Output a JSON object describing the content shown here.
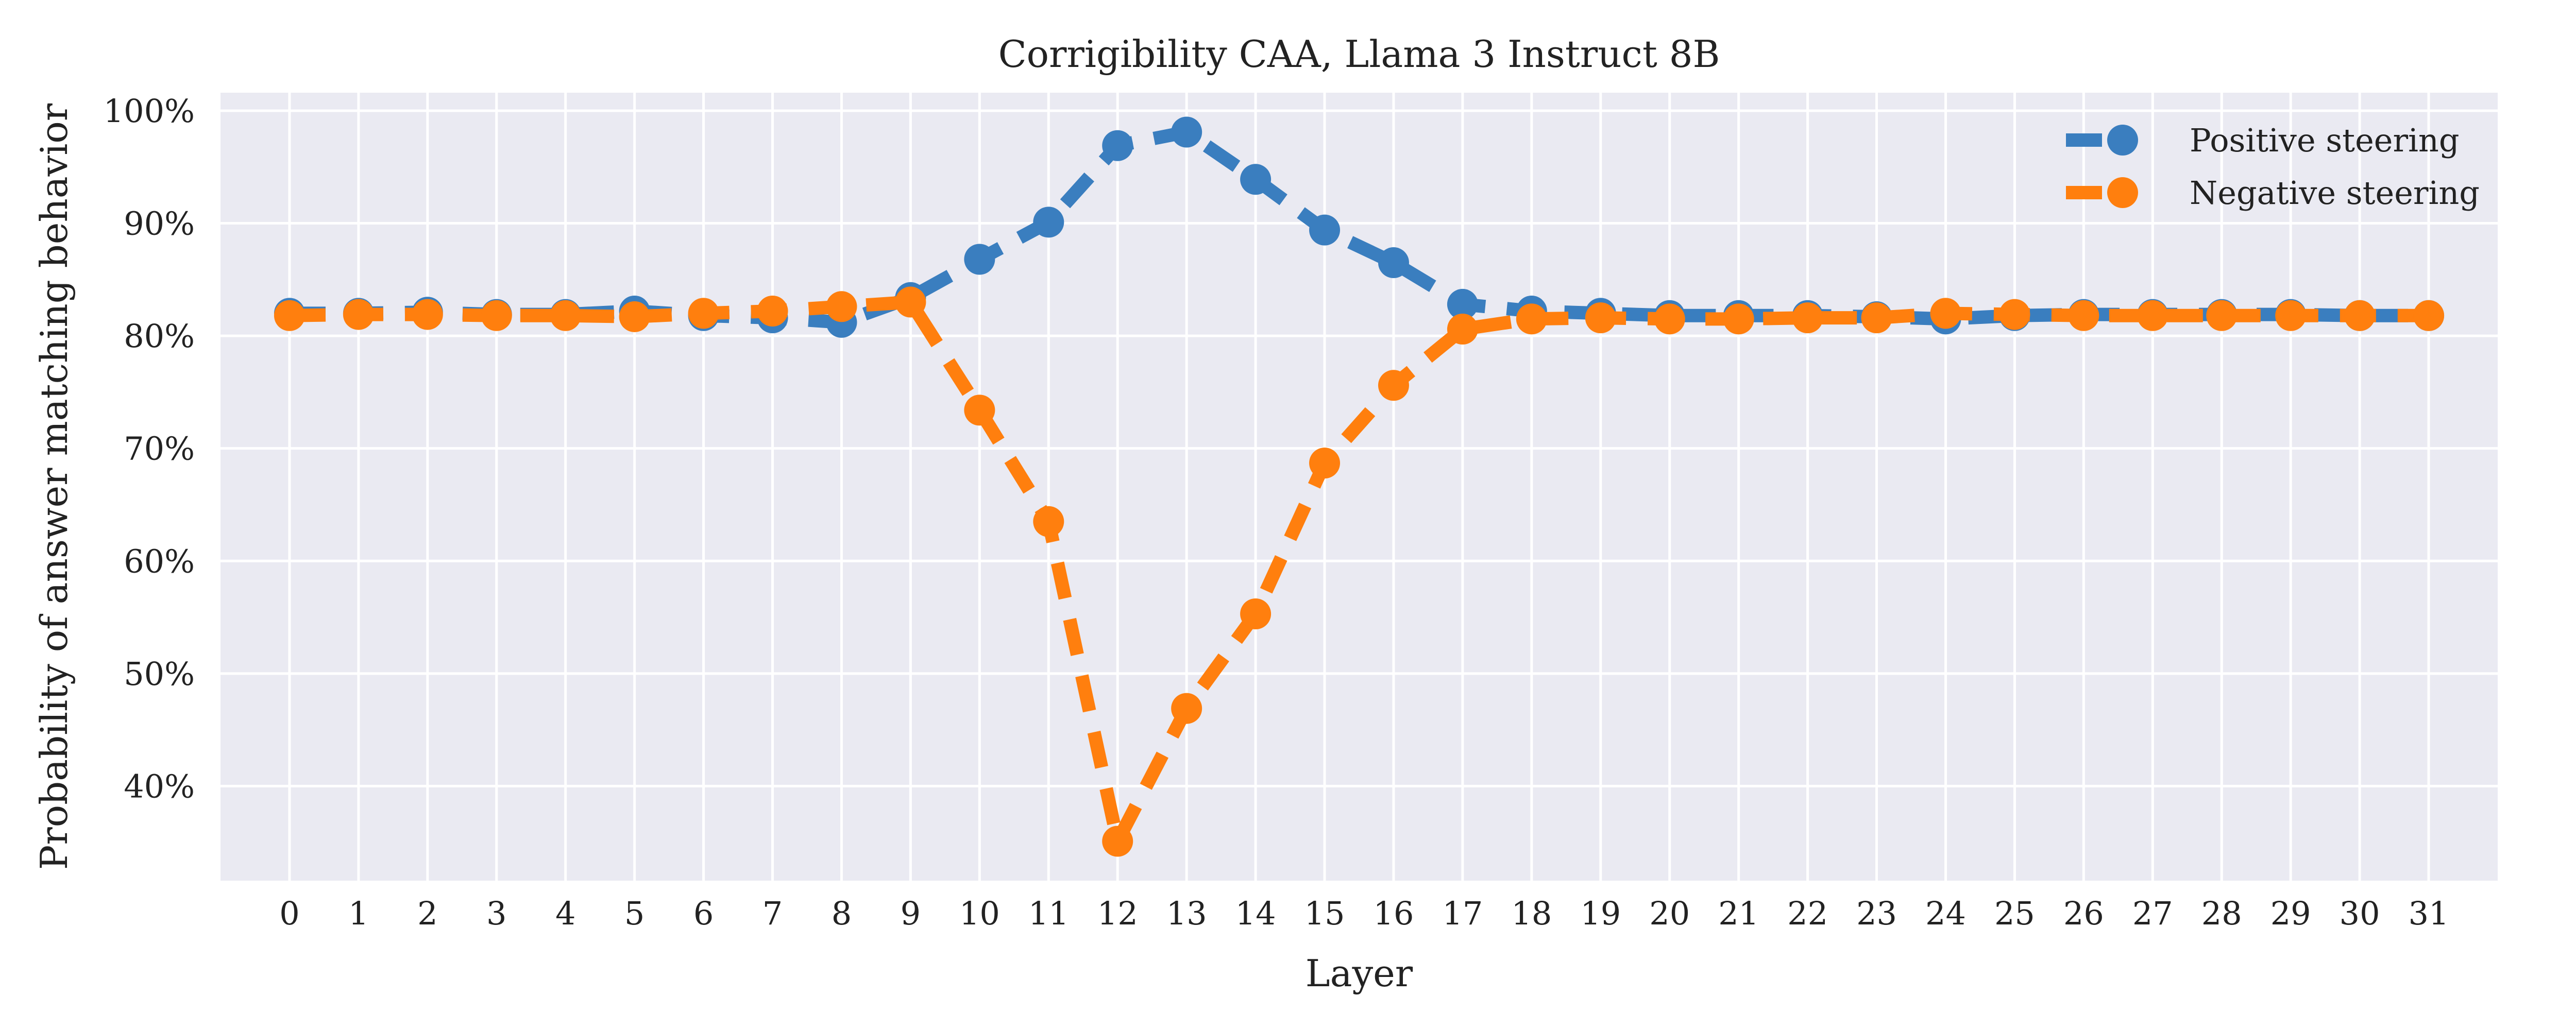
{
  "chart_data": {
    "type": "line",
    "title": "Corrigibility CAA, Llama 3 Instruct 8B",
    "xlabel": "Layer",
    "ylabel": "Probability of answer matching behavior",
    "x": [
      0,
      1,
      2,
      3,
      4,
      5,
      6,
      7,
      8,
      9,
      10,
      11,
      12,
      13,
      14,
      15,
      16,
      17,
      18,
      19,
      20,
      21,
      22,
      23,
      24,
      25,
      26,
      27,
      28,
      29,
      30,
      31
    ],
    "x_tick_labels": [
      "0",
      "1",
      "2",
      "3",
      "4",
      "5",
      "6",
      "7",
      "8",
      "9",
      "10",
      "11",
      "12",
      "13",
      "14",
      "15",
      "16",
      "17",
      "18",
      "19",
      "20",
      "21",
      "22",
      "23",
      "24",
      "25",
      "26",
      "27",
      "28",
      "29",
      "30",
      "31"
    ],
    "xlim": [
      -1.0,
      32.0
    ],
    "ylim": [
      0.316,
      1.016
    ],
    "y_ticks": [
      0.4,
      0.5,
      0.6,
      0.7,
      0.8,
      0.9,
      1.0
    ],
    "y_tick_labels": [
      "40%",
      "50%",
      "60%",
      "70%",
      "80%",
      "90%",
      "100%"
    ],
    "grid": true,
    "legend_position": "top-right",
    "series": [
      {
        "name": "Positive steering",
        "color": "#3a7ebf",
        "values": [
          0.82,
          0.82,
          0.821,
          0.819,
          0.819,
          0.822,
          0.818,
          0.816,
          0.812,
          0.834,
          0.868,
          0.901,
          0.969,
          0.981,
          0.939,
          0.894,
          0.865,
          0.828,
          0.822,
          0.82,
          0.818,
          0.818,
          0.818,
          0.817,
          0.815,
          0.818,
          0.819,
          0.819,
          0.819,
          0.819,
          0.818,
          0.818
        ]
      },
      {
        "name": "Negative steering",
        "color": "#ff7f0e",
        "values": [
          0.818,
          0.819,
          0.819,
          0.818,
          0.818,
          0.817,
          0.82,
          0.822,
          0.826,
          0.83,
          0.734,
          0.635,
          0.351,
          0.469,
          0.553,
          0.687,
          0.756,
          0.806,
          0.815,
          0.816,
          0.815,
          0.815,
          0.816,
          0.816,
          0.82,
          0.819,
          0.818,
          0.818,
          0.818,
          0.818,
          0.818,
          0.818
        ]
      }
    ]
  }
}
